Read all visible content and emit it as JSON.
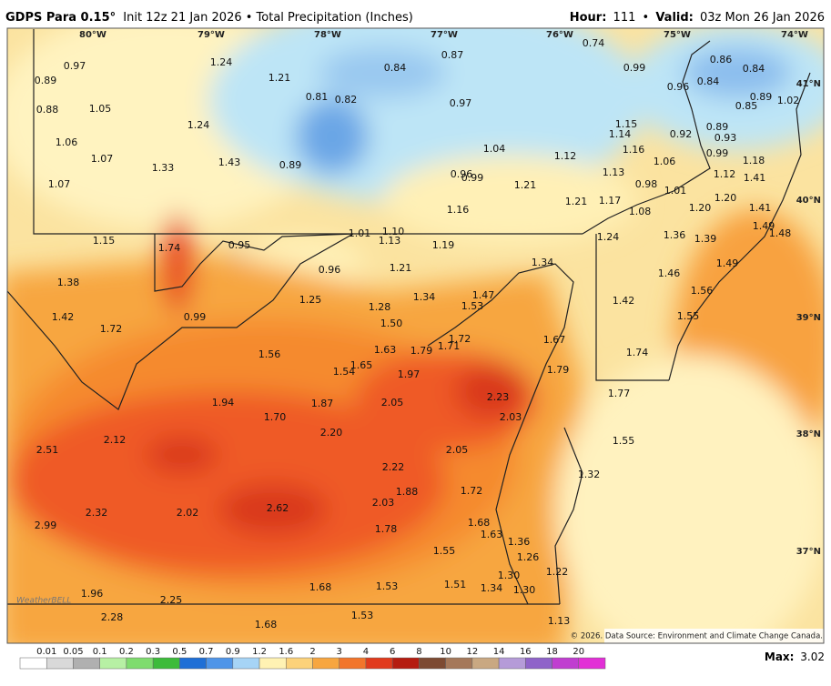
{
  "header": {
    "model": "GDPS Para 0.15°",
    "subtitle": "Init 12z 21 Jan 2026 • Total Precipitation (Inches)",
    "hour_label": "Hour:",
    "hour": "111",
    "separator": "•",
    "valid_label": "Valid:",
    "valid": "03z Mon 26 Jan 2026"
  },
  "map": {
    "longitudes": [
      "80°W",
      "79°W",
      "78°W",
      "77°W",
      "76°W",
      "75°W",
      "74°W"
    ],
    "latitudes": [
      "41°N",
      "40°N",
      "39°N",
      "38°N",
      "37°N"
    ],
    "labels": [
      "0.97",
      "0.89",
      "1.24",
      "1.21",
      "0.84",
      "0.87",
      "0.74",
      "0.99",
      "0.86",
      "0.84",
      "0.96",
      "0.84",
      "0.89",
      "1.02",
      "0.88",
      "1.05",
      "0.81",
      "0.82",
      "0.97",
      "0.85",
      "1.24",
      "1.15",
      "1.14",
      "0.89",
      "0.92",
      "0.93",
      "1.06",
      "1.07",
      "1.33",
      "1.43",
      "0.89",
      "1.04",
      "1.12",
      "1.16",
      "0.99",
      "1.18",
      "1.06",
      "1.07",
      "0.96",
      "0.99",
      "1.13",
      "1.12",
      "1.41",
      "0.98",
      "1.21",
      "1.01",
      "1.17",
      "1.21",
      "1.20",
      "1.16",
      "1.08",
      "1.20",
      "1.41",
      "1.49",
      "1.48",
      "1.01",
      "1.10",
      "1.13",
      "1.19",
      "1.24",
      "1.36",
      "1.39",
      "1.15",
      "1.74",
      "0.95",
      "1.34",
      "1.49",
      "1.21",
      "0.96",
      "1.46",
      "1.38",
      "1.25",
      "1.34",
      "1.47",
      "1.56",
      "1.53",
      "1.28",
      "1.42",
      "1.42",
      "0.99",
      "1.55",
      "1.50",
      "1.72",
      "1.72",
      "1.67",
      "1.63",
      "1.79",
      "1.71",
      "1.74",
      "1.56",
      "1.65",
      "1.54",
      "1.79",
      "1.97",
      "2.23",
      "1.77",
      "1.94",
      "1.87",
      "2.05",
      "2.03",
      "1.70",
      "2.20",
      "2.12",
      "1.55",
      "2.51",
      "2.05",
      "2.22",
      "1.32",
      "1.88",
      "1.72",
      "2.03",
      "2.32",
      "2.02",
      "2.62",
      "2.99",
      "1.78",
      "1.68",
      "1.63",
      "1.36",
      "1.55",
      "1.26",
      "1.22",
      "1.30",
      "1.53",
      "1.51",
      "1.34",
      "1.30",
      "1.68",
      "1.96",
      "2.25",
      "2.28",
      "1.53",
      "1.68",
      "1.13"
    ],
    "logo": "WeatherBELL",
    "credit": "© 2026. Data Source: Environment and Climate Change Canada."
  },
  "colorbar": {
    "labels": [
      "0.01",
      "0.05",
      "0.1",
      "0.2",
      "0.3",
      "0.5",
      "0.7",
      "0.9",
      "1.2",
      "1.6",
      "2",
      "3",
      "4",
      "6",
      "8",
      "10",
      "12",
      "14",
      "16",
      "18",
      "20"
    ]
  },
  "footer": {
    "max_label": "Max:",
    "max": "3.02"
  }
}
